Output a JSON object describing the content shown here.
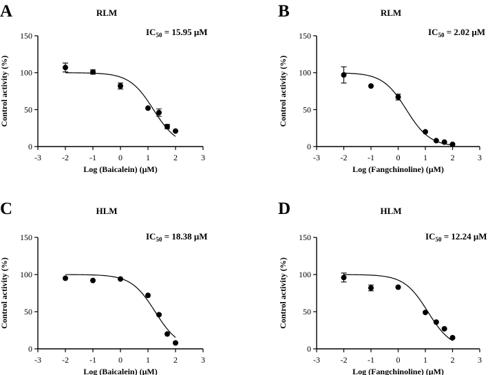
{
  "chart_data": [
    {
      "letter": "A",
      "title": "RLM",
      "ic50": {
        "prefix": "IC",
        "sub": "50",
        "suffix": " = 15.95 μM",
        "log_value": 1.2
      },
      "type": "scatter",
      "xlabel": "Log (Baicalein) (μM)",
      "ylabel": "Control activity (%)",
      "xlim": [
        -3,
        3
      ],
      "ylim": [
        0,
        150
      ],
      "xticks": [
        -3,
        -2,
        -1,
        0,
        1,
        2,
        3
      ],
      "yticks": [
        0,
        50,
        100,
        150
      ],
      "x": [
        -2,
        -1,
        0,
        1,
        1.4,
        1.7,
        2
      ],
      "y": [
        107,
        101,
        82,
        52,
        46,
        27,
        21
      ],
      "err": [
        6,
        3,
        4,
        0,
        5,
        3,
        0
      ],
      "fit": {
        "top": 100,
        "bottom": 0,
        "hill": 1.0,
        "x_range": [
          -2,
          2
        ]
      }
    },
    {
      "letter": "B",
      "title": "RLM",
      "ic50": {
        "prefix": "IC",
        "sub": "50",
        "suffix": " = 2.02 μM",
        "log_value": 0.3
      },
      "type": "scatter",
      "xlabel": "Log (Fangchinoline) (μM)",
      "ylabel": "Control activity (%)",
      "xlim": [
        -3,
        3
      ],
      "ylim": [
        0,
        150
      ],
      "xticks": [
        -3,
        -2,
        -1,
        0,
        1,
        2,
        3
      ],
      "yticks": [
        0,
        50,
        100,
        150
      ],
      "x": [
        -2,
        -1,
        0,
        1,
        1.4,
        1.7,
        2
      ],
      "y": [
        97,
        82,
        67,
        20,
        8,
        6,
        3
      ],
      "err": [
        11,
        0,
        4,
        0,
        0,
        0,
        0
      ],
      "fit": {
        "top": 100,
        "bottom": 0,
        "hill": 1.0,
        "x_range": [
          -2,
          2
        ]
      }
    },
    {
      "letter": "C",
      "title": "HLM",
      "ic50": {
        "prefix": "IC",
        "sub": "50",
        "suffix": " = 18.38 μM",
        "log_value": 1.26
      },
      "type": "scatter",
      "xlabel": "Log (Baicalein) (μM)",
      "ylabel": "Control activity (%)",
      "xlim": [
        -3,
        3
      ],
      "ylim": [
        0,
        150
      ],
      "xticks": [
        -3,
        -2,
        -1,
        0,
        1,
        2,
        3
      ],
      "yticks": [
        0,
        50,
        100,
        150
      ],
      "x": [
        -2,
        -1,
        0,
        1,
        1.4,
        1.7,
        2
      ],
      "y": [
        95,
        92,
        94,
        72,
        46,
        20,
        8
      ],
      "err": [
        0,
        0,
        0,
        0,
        0,
        0,
        0
      ],
      "fit": {
        "top": 100,
        "bottom": 0,
        "hill": 1.0,
        "x_range": [
          -2,
          2
        ]
      }
    },
    {
      "letter": "D",
      "title": "HLM",
      "ic50": {
        "prefix": "IC",
        "sub": "50",
        "suffix": " = 12.24 μM",
        "log_value": 1.09
      },
      "type": "scatter",
      "xlabel": "Log (Fangchinoline) (μM)",
      "ylabel": "Control activity (%)",
      "xlim": [
        -3,
        3
      ],
      "ylim": [
        0,
        150
      ],
      "xticks": [
        -3,
        -2,
        -1,
        0,
        1,
        2,
        3
      ],
      "yticks": [
        0,
        50,
        100,
        150
      ],
      "x": [
        -2,
        -1,
        0,
        1,
        1.4,
        1.7,
        2
      ],
      "y": [
        96,
        82,
        83,
        49,
        36,
        27,
        15
      ],
      "err": [
        6,
        4,
        0,
        0,
        0,
        0,
        0
      ],
      "fit": {
        "top": 100,
        "bottom": 0,
        "hill": 1.0,
        "x_range": [
          -2,
          2
        ]
      }
    }
  ]
}
